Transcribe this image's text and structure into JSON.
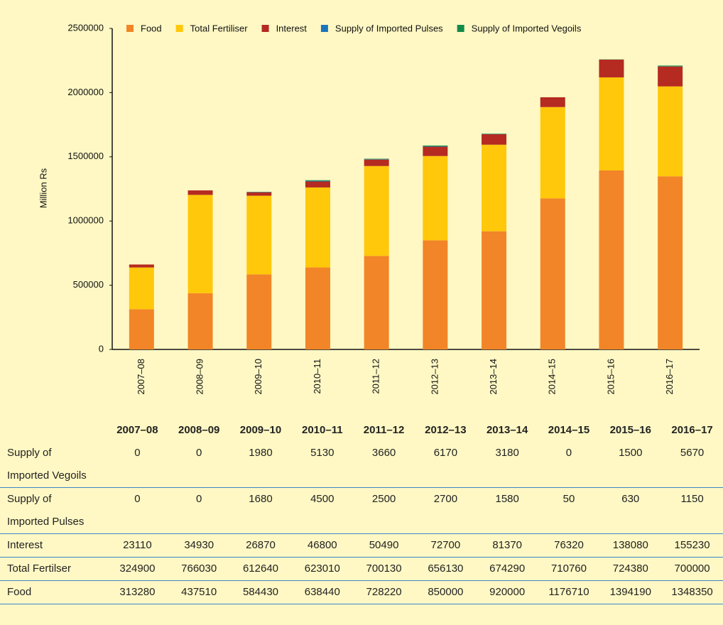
{
  "chart_data": {
    "type": "stacked_bar",
    "y_label": "Million Rs",
    "categories": [
      "2007–08",
      "2008–09",
      "2009–10",
      "2010–11",
      "2011–12",
      "2012–13",
      "2013–14",
      "2014–15",
      "2015–16",
      "2016–17"
    ],
    "series": [
      {
        "name": "Food",
        "color": "#f28527",
        "values": [
          313280,
          437510,
          584430,
          638440,
          728220,
          850000,
          920000,
          1176710,
          1394190,
          1348350
        ]
      },
      {
        "name": "Total Fertiliser",
        "color": "#ffc80a",
        "values": [
          324900,
          766030,
          612640,
          623010,
          700130,
          656130,
          674290,
          710760,
          724380,
          700000
        ]
      },
      {
        "name": "Interest",
        "color": "#b52a21",
        "values": [
          23110,
          34930,
          26870,
          46800,
          50490,
          72700,
          81370,
          76320,
          138080,
          155230
        ]
      },
      {
        "name": "Supply of Imported Pulses",
        "color": "#1a75bc",
        "values": [
          0,
          0,
          1680,
          4500,
          2500,
          2700,
          1580,
          50,
          630,
          1150
        ]
      },
      {
        "name": "Supply of Imported Vegoils",
        "color": "#128a4a",
        "values": [
          0,
          0,
          1980,
          5130,
          3660,
          6170,
          3180,
          0,
          1500,
          5670
        ]
      }
    ],
    "ylim": [
      0,
      2500000
    ],
    "yticks": [
      0,
      500000,
      1000000,
      1500000,
      2000000,
      2500000
    ],
    "grid": false,
    "legend": "top"
  },
  "table": {
    "rows": [
      "Supply of Imported Vegoils",
      "Supply of Imported Pulses",
      "Interest",
      "Total Fertilser",
      "Food"
    ]
  }
}
